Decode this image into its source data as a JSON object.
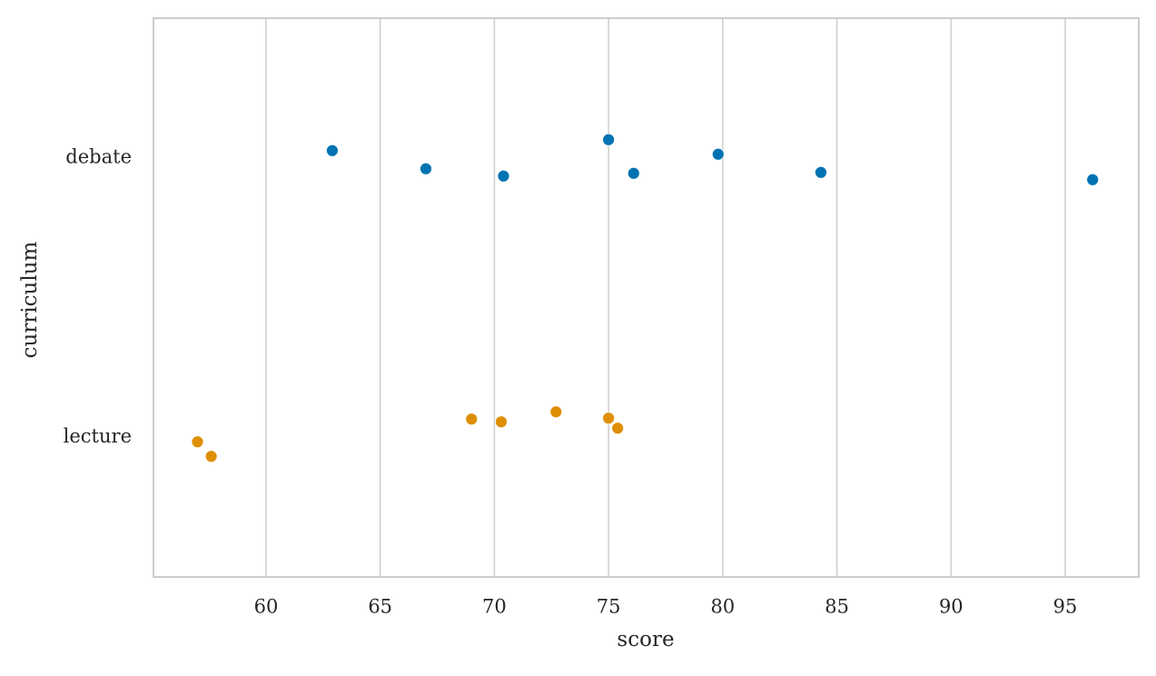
{
  "chart_data": {
    "type": "strip",
    "xlabel": "score",
    "ylabel": "curriculum",
    "categories": [
      "debate",
      "lecture"
    ],
    "colors": [
      "#0173b2",
      "#de8f05"
    ],
    "values": [
      [
        62.9,
        67.0,
        70.4,
        75.0,
        76.1,
        79.8,
        84.3,
        96.2
      ],
      [
        57.0,
        57.6,
        69.0,
        70.3,
        72.7,
        75.0,
        75.4
      ]
    ],
    "xlim": [
      55.07,
      98.22
    ],
    "xticks": [
      60,
      65,
      70,
      75,
      80,
      85,
      90,
      95
    ],
    "grid": true
  }
}
